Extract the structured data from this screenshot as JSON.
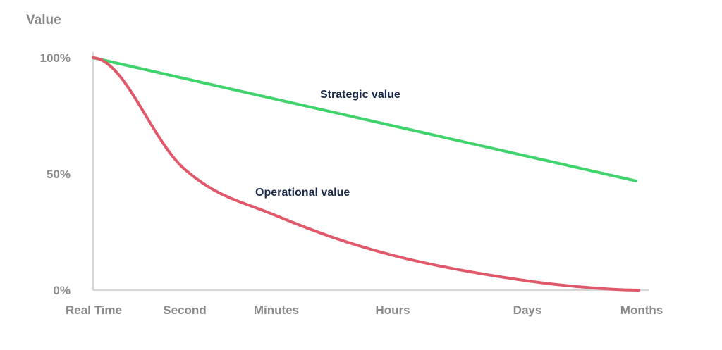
{
  "chart_data": {
    "type": "line",
    "title": "",
    "ylabel": "Value",
    "xlabel": "",
    "categories": [
      "Real Time",
      "Second",
      "Minutes",
      "Hours",
      "Days",
      "Months"
    ],
    "y_ticks": [
      "0%",
      "50%",
      "100%"
    ],
    "ylim": [
      0,
      100
    ],
    "grid": false,
    "series": [
      {
        "name": "Strategic value",
        "color": "#3fd36b",
        "values": [
          100,
          90,
          81,
          71,
          59,
          47
        ]
      },
      {
        "name": "Operational value",
        "color": "#e0586a",
        "values": [
          100,
          52,
          32,
          15,
          4,
          0
        ]
      }
    ]
  }
}
